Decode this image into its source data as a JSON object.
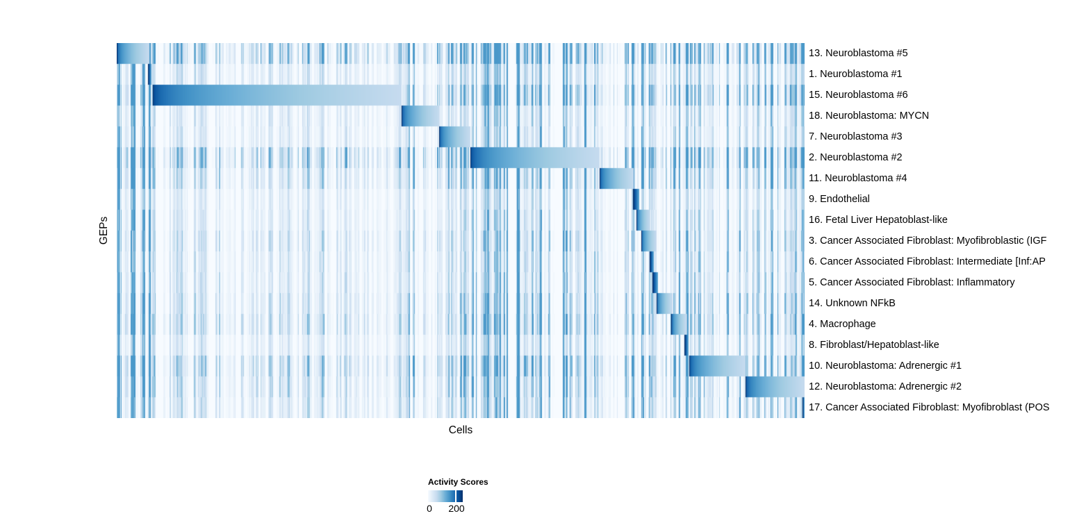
{
  "chart_data": {
    "type": "heatmap",
    "title": "",
    "xlabel": "Cells",
    "ylabel": "GEPs",
    "grid": false,
    "colormap_stops": [
      "#f7fbff",
      "#deebf7",
      "#c6dbef",
      "#9ecae1",
      "#6baed6",
      "#4292c6",
      "#2171b5",
      "#08519c",
      "#08306b"
    ],
    "colorbar": {
      "title": "Activity Scores",
      "min_label": "0",
      "max_label": "200",
      "ticks": [
        0,
        200
      ],
      "value_range": [
        0,
        250
      ],
      "tick_fraction": 0.8,
      "position": "bottom"
    },
    "rows": [
      {
        "label": "13. Neuroblastoma #5",
        "block": [
          0.0,
          0.0475
        ],
        "peak_value": 250,
        "bg_stripe_level": 2.0
      },
      {
        "label": "1. Neuroblastoma #1",
        "block": [
          0.0455,
          0.0505
        ],
        "peak_value": 250,
        "bg_stripe_level": 0.9
      },
      {
        "label": "15. Neuroblastoma #6",
        "block": [
          0.0525,
          0.414
        ],
        "peak_value": 250,
        "bg_stripe_level": 1.5
      },
      {
        "label": "18. Neuroblastoma: MYCN",
        "block": [
          0.414,
          0.469
        ],
        "peak_value": 250,
        "bg_stripe_level": 0.8
      },
      {
        "label": "7. Neuroblastoma #3",
        "block": [
          0.469,
          0.514
        ],
        "peak_value": 250,
        "bg_stripe_level": 0.8
      },
      {
        "label": "2. Neuroblastoma #2",
        "block": [
          0.514,
          0.702
        ],
        "peak_value": 250,
        "bg_stripe_level": 1.9
      },
      {
        "label": "11. Neuroblastoma #4",
        "block": [
          0.702,
          0.752
        ],
        "peak_value": 250,
        "bg_stripe_level": 1.2
      },
      {
        "label": "9. Endothelial",
        "block": [
          0.751,
          0.76
        ],
        "peak_value": 250,
        "bg_stripe_level": 0.7
      },
      {
        "label": "16. Fetal Liver Hepatoblast-like",
        "block": [
          0.756,
          0.776
        ],
        "peak_value": 250,
        "bg_stripe_level": 0.8
      },
      {
        "label": "3. Cancer Associated Fibroblast: Myofibroblastic (IGF",
        "block": [
          0.763,
          0.785
        ],
        "peak_value": 250,
        "bg_stripe_level": 1.0
      },
      {
        "label": "6. Cancer Associated Fibroblast: Intermediate [Inf:AP",
        "block": [
          0.7745,
          0.781
        ],
        "peak_value": 250,
        "bg_stripe_level": 0.9
      },
      {
        "label": "5. Cancer Associated Fibroblast: Inflammatory",
        "block": [
          0.779,
          0.7865
        ],
        "peak_value": 250,
        "bg_stripe_level": 0.9
      },
      {
        "label": "14. Unknown NFkB",
        "block": [
          0.785,
          0.808
        ],
        "peak_value": 250,
        "bg_stripe_level": 1.1
      },
      {
        "label": "4. Macrophage",
        "block": [
          0.806,
          0.828
        ],
        "peak_value": 250,
        "bg_stripe_level": 1.3
      },
      {
        "label": "8. Fibroblast/Hepatoblast-like",
        "block": [
          0.8255,
          0.8315
        ],
        "peak_value": 250,
        "bg_stripe_level": 0.8
      },
      {
        "label": "10. Neuroblastoma: Adrenergic #1",
        "block": [
          0.8325,
          0.914
        ],
        "peak_value": 250,
        "bg_stripe_level": 1.5
      },
      {
        "label": "12. Neuroblastoma: Adrenergic #2",
        "block": [
          0.914,
          0.9995
        ],
        "peak_value": 250,
        "bg_stripe_level": 1.2
      },
      {
        "label": "17. Cancer Associated Fibroblast: Myofibroblast (POS",
        "block": [
          0.9965,
          1.0
        ],
        "peak_value": 250,
        "bg_stripe_level": 1.0
      }
    ],
    "column_regions": [
      {
        "range": [
          0.0,
          0.052
        ],
        "boost": 1.4
      },
      {
        "range": [
          0.052,
          0.414
        ],
        "boost": 0.6
      },
      {
        "range": [
          0.414,
          0.514
        ],
        "boost": 0.9
      },
      {
        "range": [
          0.514,
          0.702
        ],
        "boost": 1.5
      },
      {
        "range": [
          0.702,
          0.786
        ],
        "boost": 1.1
      },
      {
        "range": [
          0.786,
          0.832
        ],
        "boost": 1.25
      },
      {
        "range": [
          0.832,
          0.914
        ],
        "boost": 0.95
      },
      {
        "range": [
          0.914,
          1.0
        ],
        "boost": 1.1
      }
    ]
  }
}
